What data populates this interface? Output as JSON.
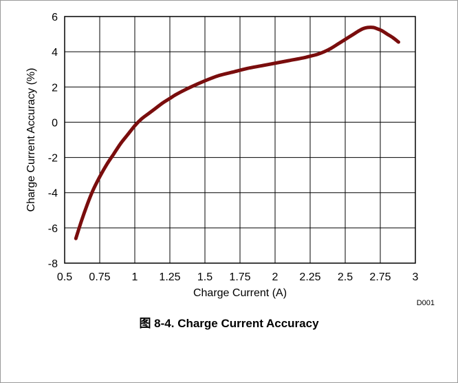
{
  "caption": "图 8-4. Charge Current Accuracy",
  "figure_id": "D001",
  "colors": {
    "curve": "#7a0d0d",
    "grid": "#000000",
    "frame": "#999999"
  },
  "chart_data": {
    "type": "line",
    "xlabel": "Charge Current (A)",
    "ylabel": "Charge Current Accuracy (%)",
    "xlim": [
      0.5,
      3
    ],
    "ylim": [
      -8,
      6
    ],
    "x_ticks": [
      "0.5",
      "0.75",
      "1",
      "1.25",
      "1.5",
      "1.75",
      "2",
      "2.25",
      "2.5",
      "2.75",
      "3"
    ],
    "y_ticks": [
      "6",
      "4",
      "2",
      "0",
      "-2",
      "-4",
      "-6",
      "-8"
    ],
    "grid": true,
    "series": [
      {
        "x": [
          0.58,
          0.62,
          0.66,
          0.7,
          0.75,
          0.8,
          0.85,
          0.9,
          0.95,
          1.0,
          1.05,
          1.1,
          1.15,
          1.2,
          1.25,
          1.3,
          1.4,
          1.5,
          1.6,
          1.7,
          1.8,
          1.9,
          2.0,
          2.1,
          2.2,
          2.25,
          2.3,
          2.35,
          2.4,
          2.45,
          2.5,
          2.55,
          2.6,
          2.63,
          2.66,
          2.7,
          2.73,
          2.76,
          2.8,
          2.84,
          2.88
        ],
        "y": [
          -6.6,
          -5.6,
          -4.7,
          -3.9,
          -3.1,
          -2.4,
          -1.8,
          -1.2,
          -0.7,
          -0.2,
          0.2,
          0.5,
          0.8,
          1.1,
          1.35,
          1.6,
          2.0,
          2.35,
          2.65,
          2.85,
          3.05,
          3.2,
          3.35,
          3.5,
          3.65,
          3.75,
          3.85,
          4.0,
          4.2,
          4.45,
          4.7,
          4.95,
          5.2,
          5.32,
          5.38,
          5.38,
          5.3,
          5.2,
          5.0,
          4.8,
          4.55
        ]
      }
    ]
  }
}
